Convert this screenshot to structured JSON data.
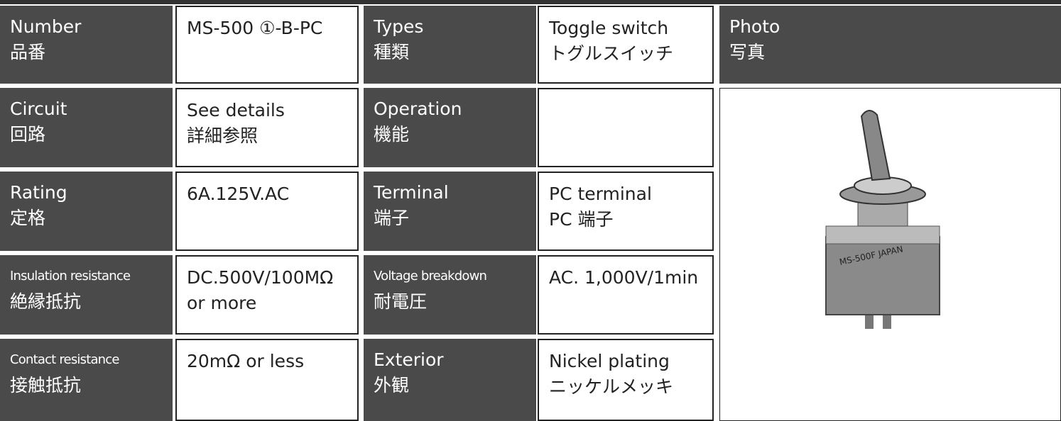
{
  "left": [
    {
      "label": [
        "Number",
        "品番"
      ],
      "value": [
        "MS-500 ①-B-PC"
      ]
    },
    {
      "label": [
        "Circuit",
        "回路"
      ],
      "value": [
        "See details",
        "詳細参照"
      ]
    },
    {
      "label": [
        "Rating",
        "定格"
      ],
      "value": [
        "6A.125V.AC"
      ]
    },
    {
      "label": [
        "Insulation resistance",
        "絶縁抵抗"
      ],
      "value": [
        "DC.500V/100MΩ",
        "or more"
      ]
    },
    {
      "label": [
        "Contact resistance",
        "接触抵抗"
      ],
      "value": [
        "20mΩ or less"
      ]
    }
  ],
  "right": [
    {
      "label": [
        "Types",
        "種類"
      ],
      "value": [
        "Toggle switch",
        "トグルスイッチ"
      ]
    },
    {
      "label": [
        "Operation",
        "機能"
      ],
      "value": []
    },
    {
      "label": [
        "Terminal",
        "端子"
      ],
      "value": [
        "PC terminal",
        "PC 端子"
      ]
    },
    {
      "label": [
        "Voltage breakdown",
        "耐電圧"
      ],
      "value": [
        "AC. 1,000V/1min"
      ]
    },
    {
      "label": [
        "Exterior",
        "外観"
      ],
      "value": [
        "Nickel plating",
        "ニッケルメッキ"
      ]
    }
  ],
  "photo": {
    "label": [
      "Photo",
      "写真"
    ]
  }
}
